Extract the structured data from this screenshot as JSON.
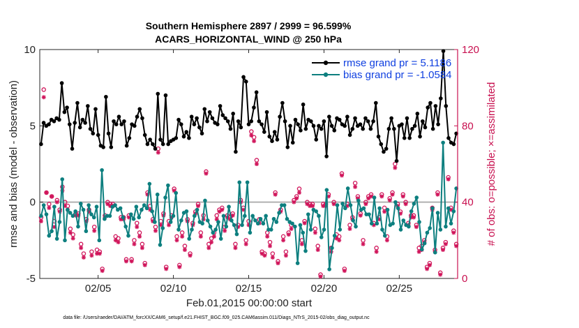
{
  "figure": {
    "title_line1": "Southern Hemisphere 2897 / 2999 = 96.599%",
    "title_line2": "ACARS_HORIZONTAL_WIND @ 250 hPa",
    "footnote": "data file: /Users/raeder/DAI/ATM_forcXX/CAM6_setup/f.e21.FHIST_BGC.f09_025.CAM6assim.011/Diags_NTrS_2015-02/obs_diag_output.nc",
    "xlabel": "Feb.01,2015 00:00:00 start",
    "ylabel_left": "rmse and bias (model - observation)",
    "ylabel_right": "# of obs: o=possible; ×=assimilated"
  },
  "legend": {
    "rmse_label": "rmse grand pr = 5.1186",
    "bias_label": "bias grand pr = -1.0584"
  },
  "colors": {
    "rmse": "#000000",
    "bias": "#0d7f7f",
    "obs": "#d0145a",
    "zero_line": "#b0b0b0",
    "right_axis": "#c8104f"
  },
  "chart_data": {
    "type": "line",
    "x_unit": "days since Feb.01,2015 00:00:00",
    "xlim": [
      0.625,
      28.375
    ],
    "ylim_left": [
      -5,
      10
    ],
    "ylim_right": [
      0,
      120
    ],
    "x_ticks": [
      {
        "value": 4.5,
        "label": "02/05"
      },
      {
        "value": 9.5,
        "label": "02/10"
      },
      {
        "value": 14.5,
        "label": "02/15"
      },
      {
        "value": 19.5,
        "label": "02/20"
      },
      {
        "value": 24.5,
        "label": "02/25"
      }
    ],
    "y_ticks_left": [
      -5,
      0,
      5,
      10
    ],
    "y_ticks_right": [
      0,
      40,
      80,
      120
    ],
    "grid": false,
    "legend_position": "top-right",
    "series": [
      {
        "name": "rmse grand pr = 5.1186",
        "axis": "left",
        "values": [
          3.8,
          5.2,
          5.0,
          5.1,
          5.4,
          5.3,
          5.5,
          5.4,
          7.8,
          5.9,
          6.2,
          5.1,
          3.5,
          5.2,
          6.5,
          4.9,
          5.4,
          5.2,
          6.3,
          4.8,
          4.5,
          6.1,
          4.4,
          3.7,
          3.6,
          6.9,
          4.5,
          3.6,
          5.3,
          5.1,
          5.6,
          5.1,
          5.3,
          3.7,
          4.2,
          5.1,
          5.0,
          5.6,
          6.1,
          5.5,
          4.4,
          3.8,
          4.1,
          3.8,
          3.5,
          7.1,
          4.1,
          3.8,
          7.0,
          3.8,
          4.0,
          4.1,
          4.2,
          5.4,
          5.1,
          4.3,
          4.6,
          4.2,
          5.6,
          5.1,
          5.5,
          4.9,
          4.5,
          6.1,
          5.3,
          5.9,
          5.5,
          5.2,
          5.1,
          6.3,
          5.7,
          5.5,
          5.3,
          4.8,
          5.8,
          3.3,
          5.3,
          4.9,
          8.2,
          7.9,
          5.1,
          5.3,
          6.2,
          7.2,
          5.3,
          5.1,
          4.6,
          5.9,
          4.3,
          4.0,
          4.6,
          4.1,
          5.6,
          6.5,
          5.3,
          3.6,
          5.0,
          3.9,
          5.4,
          5.1,
          4.7,
          6.4,
          4.8,
          5.4,
          5.3,
          5.0,
          4.1,
          5.0,
          4.8,
          5.3,
          3.0,
          5.6,
          5.0,
          4.7,
          5.5,
          5.4,
          5.1,
          5.0,
          5.6,
          4.4,
          4.8,
          5.5,
          5.0,
          5.1,
          4.8,
          5.5,
          5.3,
          4.8,
          5.3,
          6.5,
          4.3,
          3.8,
          3.3,
          3.5,
          4.8,
          5.5,
          4.8,
          2.7,
          5.0,
          5.1,
          4.2,
          5.5,
          4.2,
          4.8,
          5.0,
          5.8,
          4.3,
          5.3,
          4.9,
          6.2,
          6.5,
          4.8,
          6.3,
          5.1,
          6.8,
          9.9,
          6.3,
          4.2,
          3.9,
          3.8,
          4.5
        ]
      },
      {
        "name": "bias grand pr = -1.0584",
        "axis": "left",
        "values": [
          -0.9,
          -0.2,
          -0.8,
          -2.2,
          -1.9,
          -0.3,
          -2.4,
          -1.3,
          1.5,
          -2.5,
          -0.5,
          -0.7,
          -0.9,
          -0.6,
          -1.6,
          -0.1,
          -0.5,
          -1.9,
          -0.2,
          -0.8,
          -1.0,
          -0.3,
          -2.5,
          2.1,
          -1.1,
          -0.9,
          -0.9,
          -0.3,
          -0.2,
          -0.5,
          -0.4,
          -1.0,
          -1.6,
          -2.2,
          -0.8,
          -1.1,
          -0.3,
          -1.0,
          -0.5,
          -0.2,
          -0.4,
          1.2,
          -0.6,
          -1.3,
          0.5,
          -2.8,
          -1.7,
          0.3,
          1.1,
          -1.3,
          -0.9,
          0.6,
          -1.8,
          -1.2,
          -0.7,
          -0.6,
          -2.4,
          -1.8,
          -0.9,
          -0.5,
          -1.3,
          -1.4,
          0.1,
          -1.2,
          -1.6,
          -2.0,
          -1.8,
          -1.3,
          -2.4,
          -0.9,
          -1.6,
          -0.3,
          -1.2,
          -1.5,
          -2.1,
          1.3,
          -1.5,
          -0.9,
          1.3,
          -2.0,
          -0.9,
          -1.2,
          -1.4,
          -1.1,
          -1.4,
          -0.9,
          -1.8,
          -1.8,
          -1.1,
          -1.3,
          -0.7,
          -0.2,
          -0.2,
          -1.1,
          -1.3,
          -1.4,
          -1.6,
          -4.0,
          -1.5,
          -2.0,
          -3.2,
          -0.8,
          -1.8,
          -0.5,
          -0.6,
          -0.9,
          -2.3,
          -1.8,
          0.8,
          -4.4,
          -3.0,
          -2.2,
          -0.2,
          -1.8,
          -0.1,
          -0.4,
          0.9,
          -0.2,
          -1.2,
          -1.6,
          0.1,
          -0.5,
          -0.4,
          -0.8,
          -0.8,
          -1.4,
          0.3,
          -1.4,
          -0.4,
          -1.8,
          -2.2,
          -0.5,
          -1.5,
          -1.4,
          0.0,
          -0.4,
          -1.8,
          -1.2,
          -1.5,
          -1.6,
          -0.6,
          -0.1,
          0.3,
          -1.3,
          -3.1,
          -2.7,
          -2.0,
          -1.7,
          -0.4,
          -3.3,
          -0.7,
          -1.8,
          3.9,
          -1.6,
          -0.4,
          -1.4,
          -0.6,
          0.9
        ]
      },
      {
        "name": "",
        "axis": "right",
        "marker": "o",
        "values": [
          32,
          99,
          45,
          39,
          43,
          30,
          41,
          36,
          48,
          40,
          38,
          26,
          23,
          34,
          34,
          18,
          13,
          31,
          36,
          14,
          27,
          15,
          14,
          5,
          33,
          40,
          39,
          39,
          22,
          21,
          32,
          32,
          10,
          33,
          10,
          20,
          29,
          24,
          18,
          8,
          45,
          38,
          31,
          27,
          68,
          30,
          34,
          6,
          30,
          33,
          47,
          22,
          7,
          24,
          17,
          31,
          13,
          29,
          35,
          39,
          24,
          33,
          56,
          18,
          21,
          24,
          33,
          36,
          37,
          27,
          33,
          32,
          34,
          18,
          28,
          41,
          37,
          20,
          30,
          77,
          74,
          62,
          31,
          14,
          13,
          24,
          19,
          13,
          45,
          9,
          36,
          22,
          14,
          24,
          28,
          41,
          43,
          47,
          20,
          30,
          40,
          39,
          39,
          26,
          17,
          2,
          39,
          39,
          44,
          16,
          40,
          23,
          22,
          55,
          5,
          39,
          28,
          32,
          50,
          43,
          34,
          20,
          40,
          43,
          44,
          29,
          16,
          32,
          44,
          37,
          22,
          42,
          45,
          60,
          39,
          35,
          44,
          40,
          29,
          33,
          33,
          28,
          16,
          17,
          20,
          6,
          8,
          37,
          15,
          45,
          3,
          16,
          19,
          53,
          37,
          25,
          18
        ]
      },
      {
        "name": "",
        "axis": "right",
        "marker": "*",
        "values": [
          30,
          95,
          45,
          37,
          43,
          27,
          40,
          35,
          46,
          38,
          36,
          24,
          21,
          33,
          33,
          16,
          11,
          30,
          35,
          12,
          25,
          13,
          13,
          4,
          32,
          39,
          38,
          38,
          20,
          19,
          31,
          31,
          9,
          32,
          9,
          18,
          27,
          22,
          16,
          7,
          44,
          36,
          30,
          25,
          66,
          28,
          33,
          5,
          28,
          32,
          46,
          20,
          6,
          22,
          15,
          30,
          12,
          28,
          34,
          38,
          22,
          31,
          55,
          16,
          19,
          22,
          31,
          35,
          36,
          25,
          32,
          31,
          33,
          16,
          27,
          40,
          36,
          18,
          28,
          75,
          72,
          60,
          29,
          13,
          12,
          22,
          17,
          11,
          44,
          8,
          35,
          20,
          12,
          23,
          26,
          40,
          42,
          45,
          18,
          29,
          39,
          38,
          38,
          24,
          15,
          1,
          38,
          38,
          43,
          14,
          39,
          21,
          20,
          54,
          4,
          38,
          26,
          31,
          48,
          42,
          33,
          18,
          39,
          42,
          43,
          28,
          14,
          31,
          43,
          35,
          20,
          41,
          44,
          58,
          38,
          34,
          43,
          39,
          28,
          32,
          32,
          27,
          14,
          15,
          19,
          5,
          7,
          36,
          14,
          44,
          2,
          15,
          18,
          52,
          36,
          24,
          17
        ]
      }
    ]
  }
}
